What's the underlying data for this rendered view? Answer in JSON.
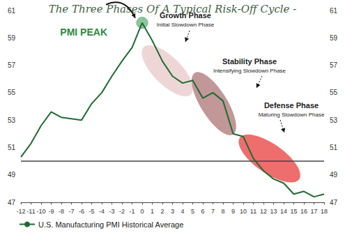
{
  "chart_data": {
    "type": "line",
    "title": "The Three Phases Of A Typical Risk-Off Cycle -",
    "x": [
      -12,
      -11,
      -10,
      -9,
      -8,
      -7,
      -6,
      -5,
      -4,
      -3,
      -2,
      -1,
      0,
      1,
      2,
      3,
      4,
      5,
      6,
      7,
      8,
      9,
      10,
      11,
      12,
      13,
      14,
      15,
      16,
      17,
      18
    ],
    "series": [
      {
        "name": "U.S. Manufacturing PMI Historical Average",
        "color": "#1e6b32",
        "marker": "none",
        "line_style": "solid",
        "values": [
          50.3,
          51.3,
          52.6,
          53.6,
          53.2,
          53.1,
          53.0,
          54.2,
          55.0,
          56.2,
          57.3,
          58.3,
          60.1,
          58.8,
          57.3,
          56.2,
          55.7,
          55.9,
          54.6,
          55.0,
          54.4,
          52.0,
          51.8,
          50.2,
          49.3,
          48.7,
          48.4,
          47.6,
          47.8,
          47.4,
          47.6
        ]
      }
    ],
    "xlim": [
      -12,
      18
    ],
    "xticks": [
      -12,
      -11,
      -10,
      -9,
      -8,
      -7,
      -6,
      -5,
      -4,
      -3,
      -2,
      -1,
      0,
      1,
      2,
      3,
      4,
      5,
      6,
      7,
      8,
      9,
      10,
      11,
      12,
      13,
      14,
      15,
      16,
      17,
      18
    ],
    "ylim": [
      47,
      61
    ],
    "yticks": [
      47,
      49,
      51,
      53,
      55,
      57,
      59,
      61
    ],
    "reference_line": 50,
    "annotations": [
      "PMI PEAK",
      "Growth Phase",
      "Initial Slowdown Phase",
      "Stability Phase",
      "Intensifying Slowdown Phase",
      "Defense Phase",
      "Maturing Slowdown Phase"
    ],
    "grid": false,
    "legend": "bottom-left"
  }
}
